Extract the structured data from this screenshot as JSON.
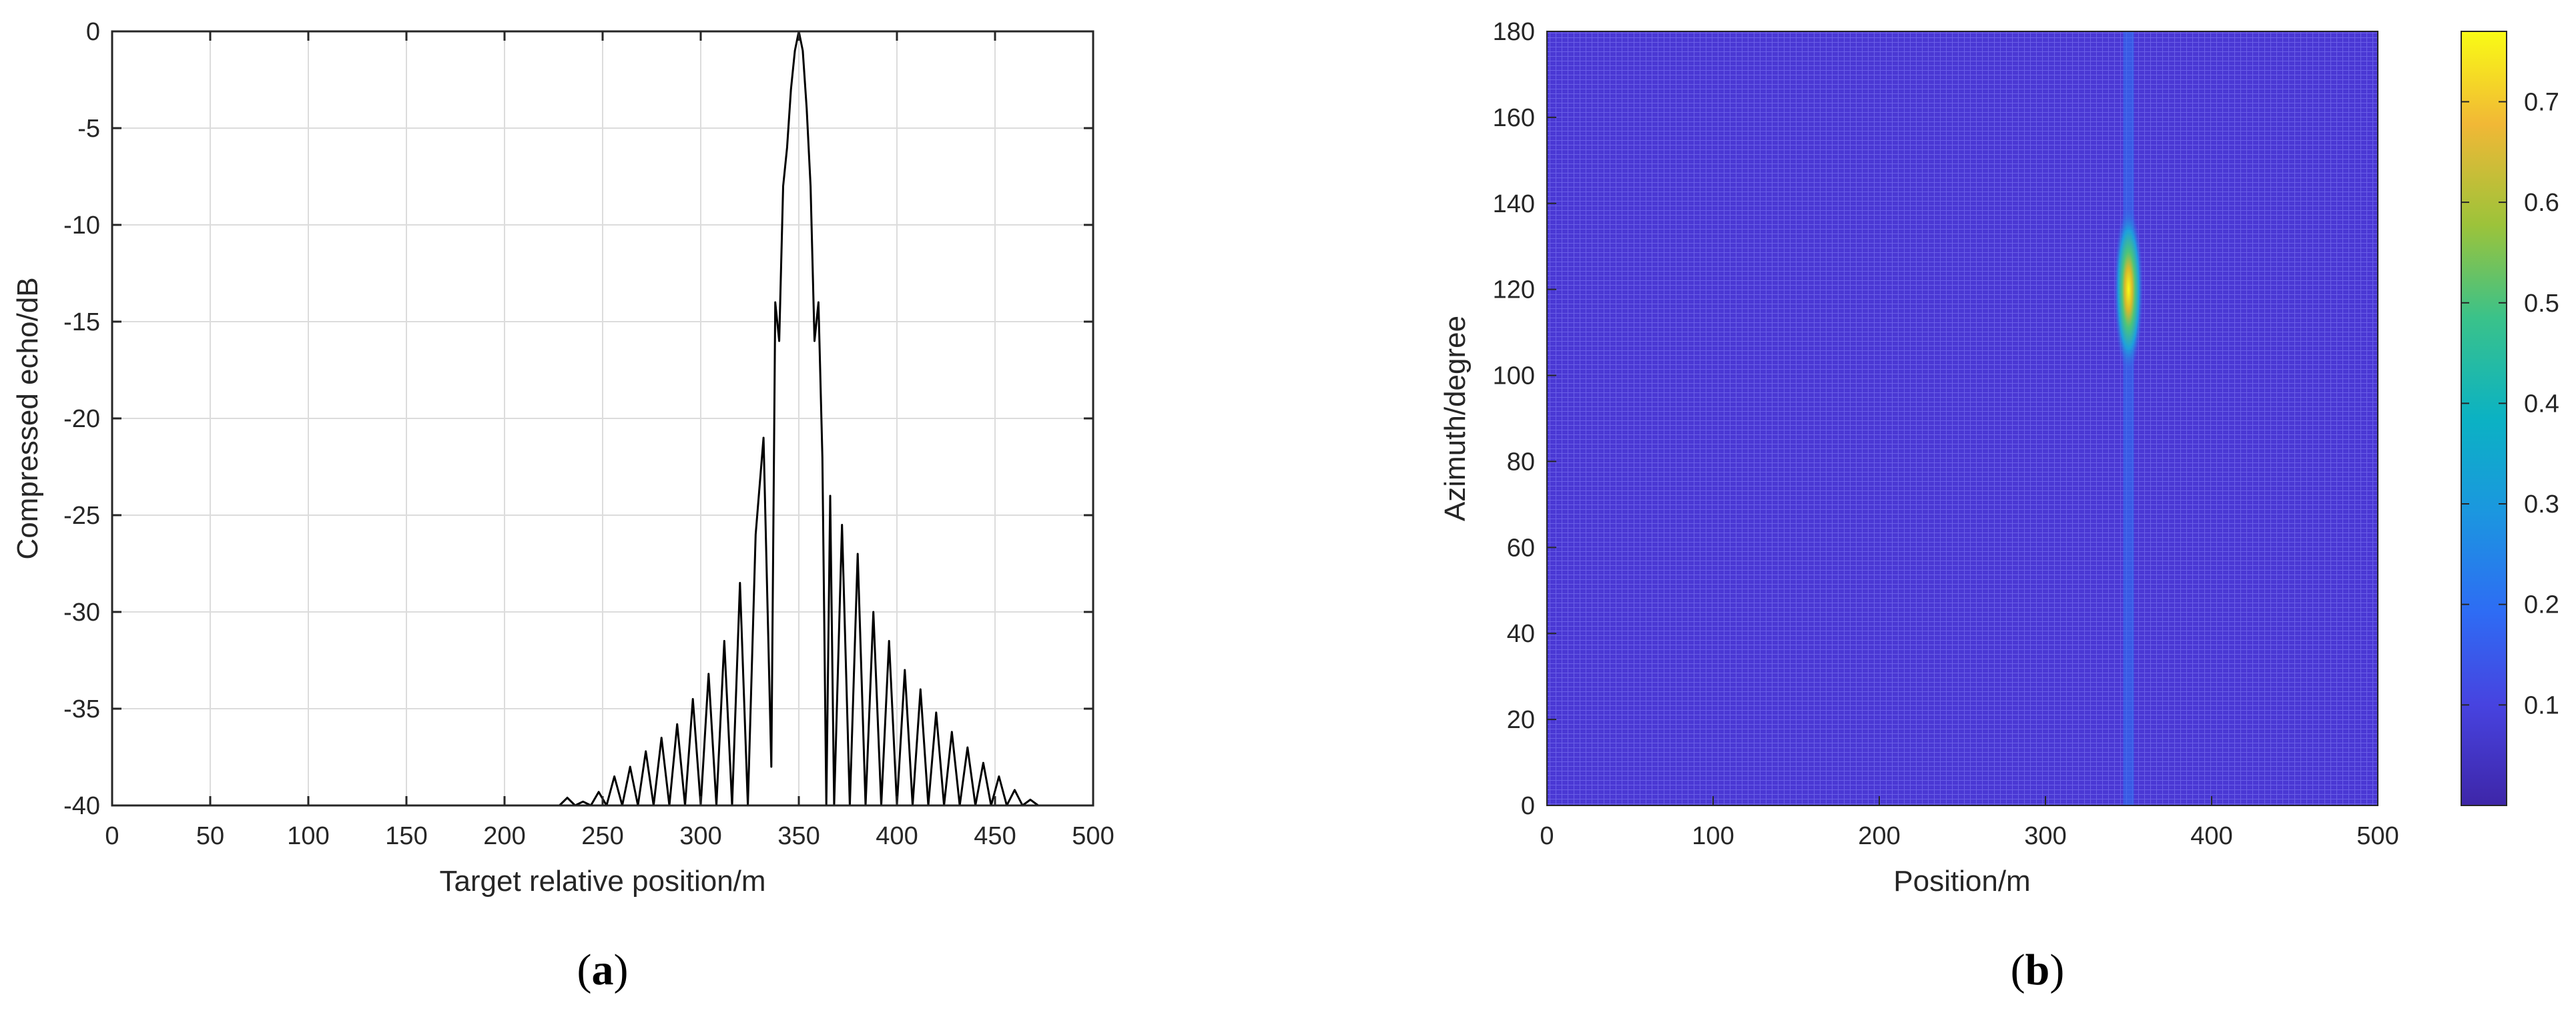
{
  "chart_data": [
    {
      "type": "line",
      "panel_label": "a",
      "title": "",
      "xlabel": "Target relative position/m",
      "ylabel": "Compressed echo/dB",
      "xlim": [
        0,
        500
      ],
      "ylim": [
        -40,
        0
      ],
      "xticks": [
        "0",
        "50",
        "100",
        "150",
        "200",
        "250",
        "300",
        "350",
        "400",
        "450",
        "500"
      ],
      "yticks": [
        "0",
        "-5",
        "-10",
        "-15",
        "-20",
        "-25",
        "-30",
        "-35",
        "-40"
      ],
      "grid": true,
      "line_color": "#000000",
      "peak": {
        "x": 350,
        "y": 0
      },
      "series": [
        {
          "x": [
            0,
            228,
            232,
            236,
            240,
            244,
            248,
            252,
            256,
            260,
            264,
            268,
            272,
            276,
            280,
            284,
            288,
            292,
            296,
            300,
            304,
            308,
            312,
            316,
            320,
            324,
            328,
            332,
            336,
            338,
            340,
            342,
            344,
            346,
            348,
            350,
            352,
            354,
            356,
            358,
            360,
            362,
            364,
            366,
            368,
            372,
            376,
            380,
            384,
            388,
            392,
            396,
            400,
            404,
            408,
            412,
            416,
            420,
            424,
            428,
            432,
            436,
            440,
            444,
            448,
            452,
            456,
            460,
            464,
            468,
            472,
            500
          ],
          "values": [
            -40,
            -40,
            -39.6,
            -40,
            -39.8,
            -40,
            -39.3,
            -40,
            -38.5,
            -40,
            -38.0,
            -40,
            -37.2,
            -40,
            -36.5,
            -40,
            -35.8,
            -40,
            -34.5,
            -40,
            -33.2,
            -40,
            -31.5,
            -40,
            -28.5,
            -40,
            -26.0,
            -21.0,
            -38.0,
            -14.0,
            -16.0,
            -8.0,
            -6.0,
            -3.0,
            -1.0,
            0,
            -1.0,
            -4.0,
            -8.0,
            -16.0,
            -14.0,
            -22.0,
            -40,
            -24.0,
            -40,
            -25.5,
            -40,
            -27.0,
            -40,
            -30.0,
            -40,
            -31.5,
            -40,
            -33.0,
            -40,
            -34.0,
            -40,
            -35.2,
            -40,
            -36.2,
            -40,
            -37.0,
            -40,
            -37.8,
            -40,
            -38.5,
            -40,
            -39.2,
            -40,
            -39.7,
            -40,
            -40
          ]
        }
      ]
    },
    {
      "type": "heatmap",
      "panel_label": "b",
      "title": "",
      "xlabel": "Position/m",
      "ylabel": "Azimuth/degree",
      "xlim": [
        0,
        500
      ],
      "ylim": [
        0,
        180
      ],
      "xticks": [
        "0",
        "100",
        "200",
        "300",
        "400",
        "500"
      ],
      "yticks": [
        "0",
        "20",
        "40",
        "60",
        "80",
        "100",
        "120",
        "140",
        "160",
        "180"
      ],
      "colormap": "parula",
      "colorbar_ticks": [
        "0.1",
        "0.2",
        "0.3",
        "0.4",
        "0.5",
        "0.6",
        "0.7"
      ],
      "colorbar_range": [
        0,
        0.77
      ],
      "background_value": 0.05,
      "hotspot": {
        "x": 350,
        "y": 120,
        "peak_value": 0.77,
        "azimuth_extent": [
          105,
          135
        ]
      },
      "stripe": {
        "x": 350,
        "value": 0.12
      }
    }
  ]
}
